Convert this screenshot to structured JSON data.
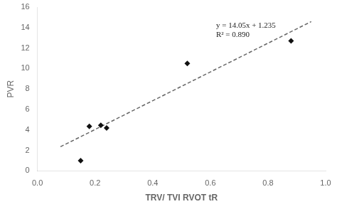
{
  "chart_data": {
    "type": "scatter",
    "xlabel": "TRV/ TVI RVOT tR",
    "ylabel": "PVR",
    "annotations": [
      "y = 14.05x + 1.235",
      "R² = 0.890"
    ],
    "series": [
      {
        "type": "scatter",
        "x": [
          0.15,
          0.18,
          0.22,
          0.24,
          0.52,
          0.88
        ],
        "values": [
          1.0,
          4.35,
          4.45,
          4.2,
          10.5,
          12.7
        ],
        "color": "#111111",
        "marker": "diamond"
      },
      {
        "type": "line",
        "x": [
          0.08,
          0.95
        ],
        "values": [
          2.359,
          14.5825
        ],
        "color": "#666666",
        "line_style": "dashed"
      }
    ],
    "xlim": [
      0,
      1.0
    ],
    "ylim": [
      0,
      16
    ],
    "xticks": [
      {
        "value": 0,
        "label": "0.0"
      },
      0.2,
      0.4,
      0.6,
      0.8,
      {
        "value": 1.0,
        "label": "1.0"
      }
    ],
    "yticks": [
      0,
      2,
      4,
      6,
      8,
      10,
      12,
      14,
      16
    ],
    "grid": false,
    "legend": false
  }
}
